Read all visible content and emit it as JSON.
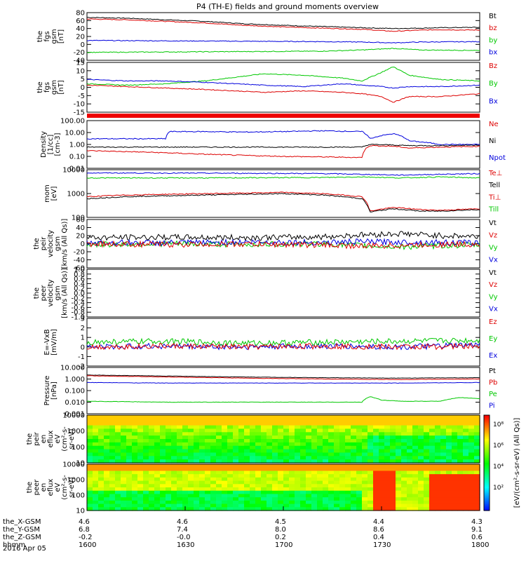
{
  "title": "P4 (TH-E) fields and ground moments overview",
  "date_label": "2016 Apr 05",
  "colors": {
    "black": "#000000",
    "red": "#dd0000",
    "green": "#00c800",
    "blue": "#0000dd"
  },
  "chart_data": [
    {
      "type": "line",
      "ylabel": [
        "the",
        "fgs",
        "gsm",
        "[nT]"
      ],
      "ylim": [
        -40,
        80
      ],
      "yticks": [
        "80",
        "60",
        "40",
        "20",
        "0",
        "-20",
        "-40"
      ],
      "legend": [
        {
          "label": "Bt",
          "color": "black"
        },
        {
          "label": "bz",
          "color": "red"
        },
        {
          "label": "by",
          "color": "green"
        },
        {
          "label": "bx",
          "color": "blue"
        }
      ],
      "series": [
        {
          "color": "black",
          "x": [
            0,
            0.1,
            0.2,
            0.3,
            0.4,
            0.5,
            0.6,
            0.7,
            0.78,
            0.85,
            0.9,
            1.0
          ],
          "y": [
            68,
            66,
            62,
            58,
            52,
            48,
            45,
            42,
            40,
            41,
            42,
            43
          ]
        },
        {
          "color": "red",
          "x": [
            0,
            0.1,
            0.2,
            0.3,
            0.4,
            0.5,
            0.6,
            0.7,
            0.78,
            0.85,
            0.9,
            1.0
          ],
          "y": [
            64,
            62,
            58,
            54,
            48,
            44,
            41,
            38,
            33,
            36,
            37,
            36
          ]
        },
        {
          "color": "blue",
          "x": [
            0,
            0.2,
            0.4,
            0.6,
            0.7,
            0.78,
            0.85,
            1.0
          ],
          "y": [
            10,
            9,
            8,
            7,
            6,
            4,
            6,
            7
          ]
        },
        {
          "color": "green",
          "x": [
            0,
            0.2,
            0.4,
            0.6,
            0.7,
            0.78,
            0.85,
            1.0
          ],
          "y": [
            -20,
            -19,
            -18,
            -17,
            -14,
            -10,
            -14,
            -15
          ]
        }
      ]
    },
    {
      "type": "line",
      "ylabel": [
        "the",
        "fgs",
        "gsm",
        "[nT]"
      ],
      "ylim": [
        -20,
        15
      ],
      "yticks": [
        "15",
        "10",
        "5",
        "0",
        "-5",
        "-10",
        "-15"
      ],
      "legend": [
        {
          "label": "Bz",
          "color": "red"
        },
        {
          "label": "By",
          "color": "green"
        },
        {
          "label": "Bx",
          "color": "blue"
        }
      ],
      "series": [
        {
          "color": "green",
          "x": [
            0,
            0.1,
            0.2,
            0.3,
            0.45,
            0.55,
            0.65,
            0.7,
            0.75,
            0.78,
            0.82,
            0.9,
            1.0
          ],
          "y": [
            0,
            -1,
            0,
            2,
            7,
            6,
            4,
            2,
            8,
            12,
            6,
            3,
            2
          ]
        },
        {
          "color": "blue",
          "x": [
            0,
            0.1,
            0.2,
            0.3,
            0.45,
            0.55,
            0.65,
            0.7,
            0.75,
            0.78,
            0.82,
            0.9,
            1.0
          ],
          "y": [
            3,
            2,
            2,
            1,
            -1,
            -2,
            0,
            -1,
            -2,
            -3,
            -2,
            -2,
            -1
          ]
        },
        {
          "color": "red",
          "x": [
            0,
            0.1,
            0.2,
            0.3,
            0.45,
            0.55,
            0.65,
            0.7,
            0.75,
            0.78,
            0.82,
            0.9,
            1.0
          ],
          "y": [
            -1,
            -2,
            -3,
            -4,
            -6,
            -5,
            -6,
            -7,
            -9,
            -13,
            -9,
            -9,
            -7
          ]
        }
      ]
    },
    {
      "type": "line",
      "ylabel": [
        "Density",
        "[1/cc]",
        "[cm-3]"
      ],
      "ylim": [
        0.01,
        100
      ],
      "log": true,
      "yticks": [
        "100.00",
        "10.00",
        "1.00",
        "0.10",
        "0.01"
      ],
      "legend": [
        {
          "label": "Ne",
          "color": "red"
        },
        {
          "label": "Ni",
          "color": "black"
        },
        {
          "label": "Npot",
          "color": "blue"
        }
      ],
      "series": [
        {
          "color": "blue",
          "x": [
            0,
            0.1,
            0.2,
            0.21,
            0.3,
            0.4,
            0.5,
            0.6,
            0.7,
            0.72,
            0.78,
            0.82,
            0.9,
            1.0
          ],
          "y": [
            3,
            3,
            3,
            12,
            12,
            11,
            12,
            14,
            12,
            3,
            8,
            2,
            1,
            1
          ]
        },
        {
          "color": "black",
          "x": [
            0,
            0.1,
            0.2,
            0.3,
            0.4,
            0.5,
            0.6,
            0.7,
            0.72,
            0.78,
            0.82,
            0.9,
            1.0
          ],
          "y": [
            0.6,
            0.6,
            0.6,
            0.6,
            0.6,
            0.6,
            0.6,
            0.6,
            1,
            0.9,
            0.8,
            0.8,
            0.9
          ]
        },
        {
          "color": "red",
          "x": [
            0,
            0.1,
            0.2,
            0.3,
            0.4,
            0.5,
            0.6,
            0.7,
            0.72,
            0.78,
            0.82,
            0.9,
            1.0
          ],
          "y": [
            0.3,
            0.25,
            0.2,
            0.15,
            0.12,
            0.1,
            0.09,
            0.08,
            0.8,
            0.7,
            0.5,
            0.6,
            0.7
          ]
        }
      ]
    },
    {
      "type": "line",
      "ylabel": [
        "mom",
        "[eV]"
      ],
      "ylim": [
        50,
        10000
      ],
      "log": true,
      "yticks": [
        "10000",
        "1000",
        "100"
      ],
      "legend": [
        {
          "label": "Te⊥",
          "color": "red"
        },
        {
          "label": "Tell",
          "color": "black"
        },
        {
          "label": "Ti⊥",
          "color": "red"
        },
        {
          "label": "Till",
          "color": "green"
        }
      ],
      "series": [
        {
          "color": "blue",
          "x": [
            0,
            0.3,
            0.6,
            0.7,
            0.8,
            0.9,
            1.0
          ],
          "y": [
            7000,
            6800,
            6500,
            6000,
            5500,
            6000,
            6500
          ]
        },
        {
          "color": "green",
          "x": [
            0,
            0.3,
            0.6,
            0.7,
            0.8,
            0.9,
            1.0
          ],
          "y": [
            4000,
            4000,
            4200,
            4500,
            4000,
            4500,
            4000
          ]
        },
        {
          "color": "red",
          "x": [
            0,
            0.1,
            0.3,
            0.5,
            0.6,
            0.7,
            0.72,
            0.78,
            0.85,
            0.9,
            1.0
          ],
          "y": [
            500,
            600,
            700,
            800,
            700,
            500,
            100,
            150,
            120,
            110,
            130
          ]
        },
        {
          "color": "black",
          "x": [
            0,
            0.1,
            0.3,
            0.5,
            0.6,
            0.7,
            0.72,
            0.78,
            0.85,
            0.9,
            1.0
          ],
          "y": [
            400,
            500,
            600,
            700,
            600,
            400,
            90,
            130,
            100,
            100,
            120
          ]
        }
      ]
    },
    {
      "type": "line",
      "ylabel": [
        "the",
        "peir",
        "velocity",
        "gsm",
        "[km/s (All Qs)]"
      ],
      "ylim": [
        -60,
        60
      ],
      "yticks": [
        "60",
        "40",
        "20",
        "0",
        "-20",
        "-40",
        "-60"
      ],
      "legend": [
        {
          "label": "Vt",
          "color": "black"
        },
        {
          "label": "Vz",
          "color": "red"
        },
        {
          "label": "Vy",
          "color": "green"
        },
        {
          "label": "Vx",
          "color": "blue"
        }
      ],
      "series": [
        {
          "color": "black",
          "x": [
            0,
            0.2,
            0.4,
            0.6,
            0.7,
            0.8,
            0.9,
            1.0
          ],
          "y": [
            15,
            16,
            15,
            17,
            22,
            25,
            20,
            18
          ]
        },
        {
          "color": "green",
          "x": [
            0,
            0.2,
            0.4,
            0.6,
            0.7,
            0.8,
            0.9,
            1.0
          ],
          "y": [
            -2,
            0,
            -2,
            0,
            -5,
            -8,
            -5,
            -3
          ]
        },
        {
          "color": "blue",
          "x": [
            0,
            0.2,
            0.4,
            0.6,
            0.7,
            0.8,
            0.9,
            1.0
          ],
          "y": [
            3,
            2,
            4,
            3,
            5,
            4,
            3,
            2
          ]
        },
        {
          "color": "red",
          "x": [
            0,
            0.2,
            0.4,
            0.6,
            0.7,
            0.8,
            0.9,
            1.0
          ],
          "y": [
            0,
            -2,
            -1,
            -3,
            -6,
            -4,
            -2,
            -1
          ]
        }
      ]
    },
    {
      "type": "line",
      "ylabel": [
        "the",
        "peer",
        "velocity",
        "gsm",
        "[km/s (All Qs)]"
      ],
      "ylim": [
        -1,
        1
      ],
      "yticks": [
        "1.0",
        "0.8",
        "0.6",
        "0.4",
        "0.2",
        "0.0",
        "-0.2",
        "-0.4",
        "-0.6",
        "-0.8",
        "-1.0"
      ],
      "legend": [
        {
          "label": "Vt",
          "color": "black"
        },
        {
          "label": "Vz",
          "color": "red"
        },
        {
          "label": "Vy",
          "color": "green"
        },
        {
          "label": "Vx",
          "color": "blue"
        }
      ],
      "series": []
    },
    {
      "type": "line",
      "ylabel": [
        "E=-VxB",
        "[mV/m]"
      ],
      "ylim": [
        -2,
        3
      ],
      "yticks": [
        "3",
        "2",
        "1",
        "0",
        "-1",
        "-2"
      ],
      "legend": [
        {
          "label": "Ez",
          "color": "red"
        },
        {
          "label": "Ey",
          "color": "green"
        },
        {
          "label": "Ex",
          "color": "blue"
        }
      ],
      "series": [
        {
          "color": "blue",
          "x": [
            0,
            0.2,
            0.4,
            0.6,
            0.8,
            1.0
          ],
          "y": [
            0,
            0.1,
            0,
            0.1,
            0,
            0.2
          ]
        },
        {
          "color": "green",
          "x": [
            0,
            0.2,
            0.4,
            0.6,
            0.8,
            1.0
          ],
          "y": [
            0.5,
            0.6,
            0.4,
            0.5,
            0.6,
            0.7
          ]
        },
        {
          "color": "red",
          "x": [
            0,
            0.2,
            0.4,
            0.6,
            0.8,
            1.0
          ],
          "y": [
            0,
            0.1,
            0,
            0.1,
            0,
            0.1
          ]
        }
      ]
    },
    {
      "type": "line",
      "ylabel": [
        "Pressure",
        "[nPa]"
      ],
      "ylim": [
        0.001,
        10
      ],
      "log": true,
      "yticks": [
        "10.000",
        "1.000",
        "0.100",
        "0.010",
        "0.001"
      ],
      "legend": [
        {
          "label": "Pt",
          "color": "black"
        },
        {
          "label": "Pb",
          "color": "red"
        },
        {
          "label": "Pe",
          "color": "green"
        },
        {
          "label": "Pi",
          "color": "blue"
        }
      ],
      "series": [
        {
          "color": "black",
          "x": [
            0,
            0.2,
            0.4,
            0.6,
            0.8,
            1.0
          ],
          "y": [
            2.2,
            1.8,
            1.5,
            1.3,
            1.2,
            1.3
          ]
        },
        {
          "color": "red",
          "x": [
            0,
            0.2,
            0.4,
            0.6,
            0.8,
            1.0
          ],
          "y": [
            1.9,
            1.5,
            1.2,
            1.0,
            0.9,
            1.0
          ]
        },
        {
          "color": "blue",
          "x": [
            0,
            0.2,
            0.4,
            0.6,
            0.8,
            1.0
          ],
          "y": [
            0.5,
            0.45,
            0.45,
            0.45,
            0.45,
            0.5
          ]
        },
        {
          "color": "green",
          "x": [
            0,
            0.2,
            0.4,
            0.6,
            0.7,
            0.72,
            0.75,
            0.8,
            0.9,
            0.95,
            1.0
          ],
          "y": [
            0.012,
            0.01,
            0.01,
            0.01,
            0.01,
            0.03,
            0.015,
            0.012,
            0.012,
            0.025,
            0.02
          ]
        }
      ]
    },
    {
      "type": "heatmap",
      "ylabel": [
        "the",
        "peir",
        "en",
        "eflux",
        "eV",
        "(cm²-s-",
        "sr-eV)"
      ],
      "ylim": [
        5,
        20000
      ],
      "log": true,
      "yticks": [
        "10000",
        "1000",
        "100",
        "10"
      ]
    },
    {
      "type": "heatmap",
      "ylabel": [
        "the",
        "peer",
        "en",
        "eflux",
        "eV",
        "(cm²-s-",
        "sr-eV)"
      ],
      "ylim": [
        5,
        20000
      ],
      "log": true,
      "yticks": [
        "10000",
        "1000",
        "100",
        "10"
      ]
    }
  ],
  "colorbar": {
    "label": "[eV/(cm²-s-sr-eV) (All Qs)]",
    "ticks": [
      "10⁸",
      "10⁶",
      "10⁴",
      "10²"
    ]
  },
  "xaxis": {
    "ticks": [
      "1600",
      "1630",
      "1700",
      "1730",
      "1800"
    ]
  },
  "ephemeris": [
    {
      "label": "the_X-GSM",
      "values": [
        "4.6",
        "4.6",
        "4.5",
        "4.4",
        "4.3"
      ]
    },
    {
      "label": "the_Y-GSM",
      "values": [
        "6.8",
        "7.4",
        "8.0",
        "8.6",
        "9.1"
      ]
    },
    {
      "label": "the_Z-GSM",
      "values": [
        "-0.2",
        "-0.0",
        "0.2",
        "0.4",
        "0.6"
      ]
    },
    {
      "label": "hhmm",
      "values": [
        "1600",
        "1630",
        "1700",
        "1730",
        "1800"
      ]
    }
  ]
}
